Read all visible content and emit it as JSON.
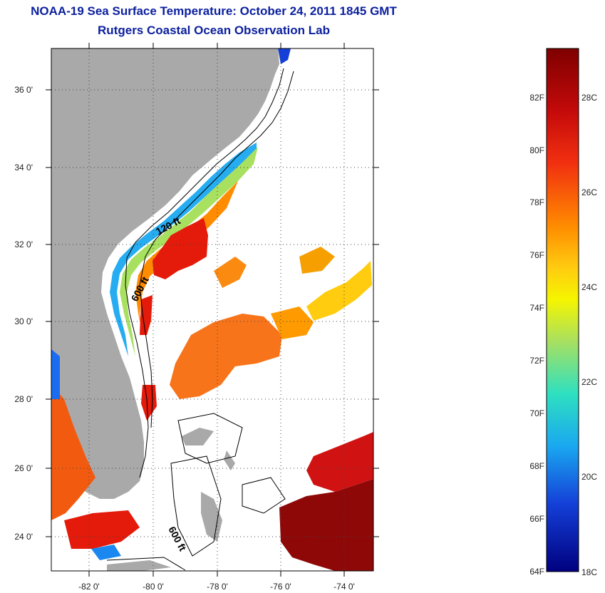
{
  "title": {
    "line1": "NOAA-19 Sea Surface Temperature:  October 24, 2011 1845 GMT",
    "line2": "Rutgers Coastal Ocean Observation Lab"
  },
  "map": {
    "lat_labels": [
      "36 0'",
      "34 0'",
      "32 0'",
      "30 0'",
      "28 0'",
      "26 0'",
      "24 0'"
    ],
    "lon_labels": [
      "-82 0'",
      "-80 0'",
      "-78 0'",
      "-76 0'",
      "-74 0'"
    ],
    "isobath_labels": [
      "120 ft",
      "600 ft",
      "600 ft"
    ],
    "land_color": "#a9a9a9"
  },
  "colorbar": {
    "fahrenheit_labels": [
      "82F",
      "80F",
      "78F",
      "76F",
      "74F",
      "72F",
      "70F",
      "68F",
      "66F",
      "64F"
    ],
    "celsius_labels": [
      "28C",
      "26C",
      "24C",
      "22C",
      "20C",
      "18C"
    ],
    "colors": [
      "#7f0000",
      "#e41a0a",
      "#ff7a00",
      "#ffe600",
      "#9ee05a",
      "#19e0d0",
      "#1a9cf0",
      "#1230d0",
      "#00007f"
    ]
  }
}
